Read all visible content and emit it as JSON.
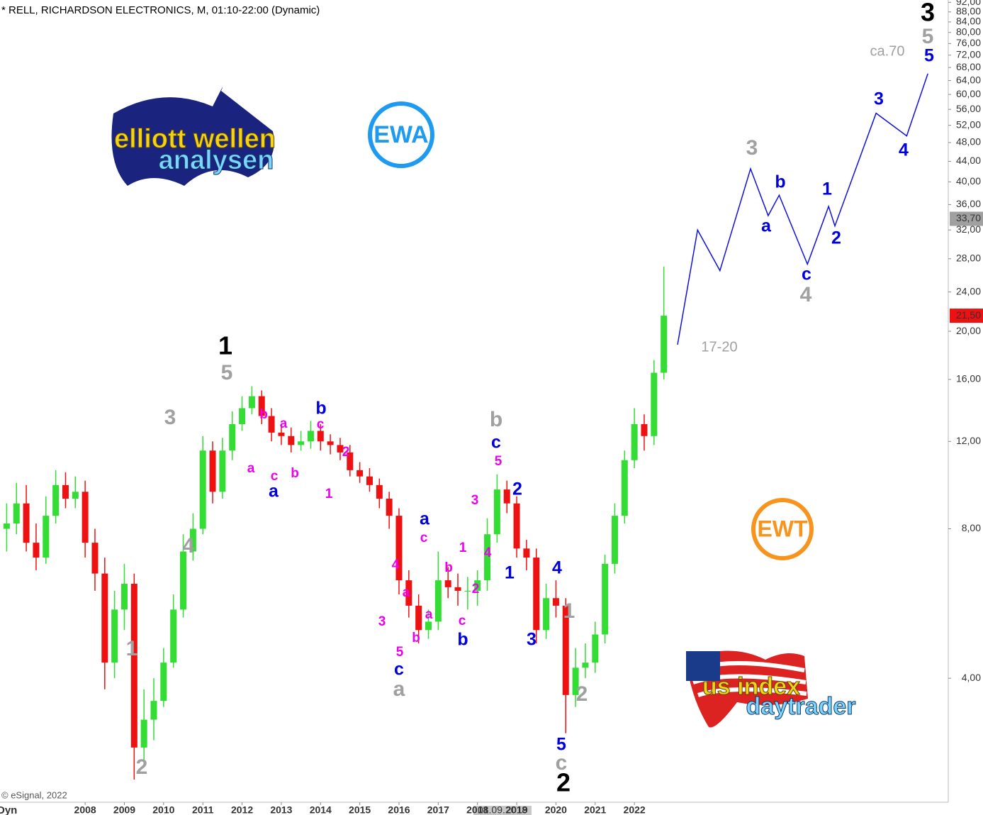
{
  "chart_data": {
    "type": "candlestick",
    "title": "* RELL, RICHARDSON ELECTRONICS, M, 01:10-22:00 (Dynamic)",
    "source": "© eSignal, 2022",
    "cursor_date": "01.09.2018",
    "footer_label": "Dyn",
    "up_color": "#33dd33",
    "down_color": "#ee1111",
    "x": [
      2006.0,
      2006.25,
      2006.5,
      2006.75,
      2007.0,
      2007.25,
      2007.5,
      2007.75,
      2008.0,
      2008.25,
      2008.5,
      2008.75,
      2009.0,
      2009.25,
      2009.5,
      2009.75,
      2010.0,
      2010.25,
      2010.5,
      2010.75,
      2011.0,
      2011.25,
      2011.5,
      2011.75,
      2012.0,
      2012.25,
      2012.5,
      2012.75,
      2013.0,
      2013.25,
      2013.5,
      2013.75,
      2014.0,
      2014.25,
      2014.5,
      2014.75,
      2015.0,
      2015.25,
      2015.5,
      2015.75,
      2016.0,
      2016.25,
      2016.5,
      2016.75,
      2017.0,
      2017.25,
      2017.5,
      2017.75,
      2018.0,
      2018.25,
      2018.5,
      2018.75,
      2019.0,
      2019.25,
      2019.5,
      2019.75,
      2020.0,
      2020.25,
      2020.5,
      2020.75,
      2021.0,
      2021.25,
      2021.5,
      2021.75,
      2022.0,
      2022.25,
      2022.5,
      2022.75
    ],
    "open": [
      8.0,
      8.2,
      9.0,
      7.5,
      7.0,
      8.5,
      9.8,
      9.2,
      9.5,
      7.5,
      6.5,
      4.3,
      5.5,
      6.2,
      2.9,
      3.3,
      3.6,
      4.3,
      5.5,
      7.2,
      8.0,
      11.5,
      9.5,
      11.5,
      13.0,
      14.0,
      14.8,
      13.5,
      12.5,
      12.3,
      11.8,
      12.0,
      12.6,
      12.0,
      11.8,
      11.4,
      10.5,
      10.2,
      9.8,
      9.2,
      8.5,
      6.3,
      5.6,
      5.0,
      5.2,
      6.3,
      6.1,
      6.0,
      6.0,
      6.3,
      7.8,
      9.6,
      9.0,
      7.3,
      7.0,
      5.0,
      5.8,
      5.6,
      3.7,
      4.2,
      4.3,
      4.9,
      6.8,
      8.5,
      11.0,
      13.0,
      12.3,
      16.5
    ],
    "high": [
      9.0,
      9.9,
      9.8,
      8.2,
      9.3,
      10.5,
      10.4,
      10.2,
      10.0,
      8.0,
      7.0,
      6.0,
      6.8,
      6.5,
      3.8,
      4.0,
      4.6,
      5.9,
      7.8,
      8.6,
      12.3,
      12.0,
      12.2,
      13.8,
      14.8,
      15.5,
      15.2,
      14.0,
      13.0,
      12.8,
      12.6,
      13.2,
      13.0,
      12.4,
      12.2,
      11.8,
      10.9,
      10.6,
      10.1,
      9.5,
      8.8,
      6.6,
      5.9,
      5.5,
      7.2,
      6.7,
      6.5,
      6.4,
      6.6,
      8.4,
      10.3,
      10.0,
      9.3,
      7.6,
      7.3,
      6.2,
      6.3,
      5.8,
      4.6,
      4.7,
      5.2,
      7.1,
      9.0,
      11.5,
      14.0,
      13.6,
      17.5,
      27.0
    ],
    "low": [
      7.2,
      7.8,
      7.2,
      6.6,
      6.8,
      8.2,
      8.8,
      8.8,
      7.0,
      6.0,
      3.8,
      4.0,
      5.0,
      2.5,
      2.7,
      3.0,
      3.5,
      4.2,
      5.3,
      6.9,
      7.8,
      9.0,
      9.2,
      11.0,
      12.6,
      13.6,
      13.0,
      12.0,
      11.8,
      11.4,
      11.5,
      11.6,
      11.5,
      11.3,
      11.0,
      10.2,
      9.9,
      9.5,
      8.8,
      8.0,
      5.9,
      5.3,
      4.7,
      4.8,
      5.0,
      5.8,
      5.6,
      5.5,
      5.6,
      6.0,
      7.5,
      8.6,
      7.0,
      6.6,
      4.7,
      4.8,
      5.3,
      3.1,
      3.5,
      4.0,
      4.1,
      4.7,
      6.5,
      8.2,
      10.6,
      11.5,
      11.8,
      16.0
    ],
    "close": [
      8.2,
      9.0,
      7.5,
      7.0,
      8.5,
      9.8,
      9.2,
      9.5,
      7.5,
      6.5,
      4.3,
      5.5,
      6.2,
      2.9,
      3.3,
      3.6,
      4.3,
      5.5,
      7.2,
      8.0,
      11.5,
      9.5,
      11.5,
      13.0,
      14.0,
      14.8,
      13.5,
      12.5,
      12.3,
      11.8,
      12.0,
      12.6,
      12.0,
      11.8,
      11.4,
      10.5,
      10.2,
      9.8,
      9.2,
      8.5,
      6.3,
      5.6,
      5.0,
      5.2,
      6.3,
      6.1,
      6.0,
      6.0,
      6.3,
      7.8,
      9.6,
      9.0,
      7.3,
      7.0,
      5.0,
      5.8,
      5.6,
      3.7,
      4.2,
      4.3,
      4.9,
      6.8,
      8.5,
      11.0,
      13.0,
      12.3,
      16.5,
      21.5
    ],
    "xlim": [
      2005.83,
      2030.0
    ],
    "xticks": [
      2008,
      2009,
      2010,
      2011,
      2012,
      2013,
      2014,
      2015,
      2016,
      2017,
      2018,
      2019,
      2020,
      2021,
      2022
    ],
    "ylim": [
      2.25,
      93
    ],
    "log_scale": true,
    "yticks": [
      {
        "value": 4,
        "label": "4,00"
      },
      {
        "value": 8,
        "label": "8,00"
      },
      {
        "value": 12,
        "label": "12,00"
      },
      {
        "value": 16,
        "label": "16,00"
      },
      {
        "value": 20,
        "label": "20,00"
      },
      {
        "value": 24,
        "label": "24,00"
      },
      {
        "value": 28,
        "label": "28,00"
      },
      {
        "value": 32,
        "label": "32,00"
      },
      {
        "value": 36,
        "label": "36,00"
      },
      {
        "value": 40,
        "label": "40,00"
      },
      {
        "value": 44,
        "label": "44,00"
      },
      {
        "value": 48,
        "label": "48,00"
      },
      {
        "value": 52,
        "label": "52,00"
      },
      {
        "value": 56,
        "label": "56,00"
      },
      {
        "value": 60,
        "label": "60,00"
      },
      {
        "value": 64,
        "label": "64,00"
      },
      {
        "value": 68,
        "label": "68,00"
      },
      {
        "value": 72,
        "label": "72,00"
      },
      {
        "value": 76,
        "label": "76,00"
      },
      {
        "value": 80,
        "label": "80,00"
      },
      {
        "value": 84,
        "label": "84,00"
      },
      {
        "value": 88,
        "label": "88,00"
      },
      {
        "value": 92,
        "label": "92,00"
      }
    ],
    "price_tags": [
      {
        "value": 33.7,
        "label": "33,70",
        "color": "#a0a0a0"
      },
      {
        "value": 21.5,
        "label": "21,50",
        "color": "#ee1111"
      }
    ],
    "projection": {
      "color": "#1010dd",
      "x": [
        2023.1,
        2023.61,
        2024.18,
        2024.96,
        2025.41,
        2025.69,
        2026.41,
        2026.95,
        2027.11,
        2028.16,
        2028.94,
        2029.48
      ],
      "values": [
        18.8,
        32.0,
        26.5,
        42.5,
        34.2,
        37.6,
        27.3,
        35.7,
        32.6,
        55.0,
        49.5,
        66.1
      ]
    },
    "wave_labels": [
      {
        "text": "1",
        "color": "#000000"
      },
      {
        "text": "2",
        "color": "#000000"
      },
      {
        "text": "3",
        "color": "#000000"
      },
      {
        "text": "5",
        "color": "#a0a0a0"
      },
      {
        "text": "3",
        "color": "#a0a0a0"
      },
      {
        "text": "4",
        "color": "#a0a0a0"
      },
      {
        "text": "1",
        "color": "#a0a0a0"
      },
      {
        "text": "2",
        "color": "#a0a0a0"
      },
      {
        "text": "b",
        "color": "#a0a0a0"
      },
      {
        "text": "a",
        "color": "#a0a0a0"
      },
      {
        "text": "1",
        "color": "#a0a0a0"
      },
      {
        "text": "2",
        "color": "#a0a0a0"
      },
      {
        "text": "c",
        "color": "#a0a0a0"
      },
      {
        "text": "3",
        "color": "#a0a0a0"
      },
      {
        "text": "4",
        "color": "#a0a0a0"
      },
      {
        "text": "5",
        "color": "#a0a0a0"
      },
      {
        "text": "b",
        "color": "#0000dd"
      },
      {
        "text": "a",
        "color": "#0000dd"
      },
      {
        "text": "a",
        "color": "#0000dd"
      },
      {
        "text": "c",
        "color": "#0000dd"
      },
      {
        "text": "b",
        "color": "#0000dd"
      },
      {
        "text": "c",
        "color": "#0000dd"
      },
      {
        "text": "2",
        "color": "#0000dd"
      },
      {
        "text": "1",
        "color": "#0000dd"
      },
      {
        "text": "3",
        "color": "#0000dd"
      },
      {
        "text": "4",
        "color": "#0000dd"
      },
      {
        "text": "5",
        "color": "#0000dd"
      },
      {
        "text": "a",
        "color": "#0000dd"
      },
      {
        "text": "b",
        "color": "#0000dd"
      },
      {
        "text": "c",
        "color": "#0000dd"
      },
      {
        "text": "1",
        "color": "#0000dd"
      },
      {
        "text": "2",
        "color": "#0000dd"
      },
      {
        "text": "3",
        "color": "#0000dd"
      },
      {
        "text": "4",
        "color": "#0000dd"
      },
      {
        "text": "5",
        "color": "#0000dd"
      },
      {
        "text": "b",
        "color": "#ee00ee"
      },
      {
        "text": "a",
        "color": "#ee00ee"
      },
      {
        "text": "c",
        "color": "#ee00ee"
      },
      {
        "text": "a",
        "color": "#ee00ee"
      },
      {
        "text": "c",
        "color": "#ee00ee"
      },
      {
        "text": "b",
        "color": "#ee00ee"
      },
      {
        "text": "2",
        "color": "#ee00ee"
      },
      {
        "text": "1",
        "color": "#ee00ee"
      },
      {
        "text": "3",
        "color": "#ee00ee"
      },
      {
        "text": "5",
        "color": "#ee00ee"
      },
      {
        "text": "4",
        "color": "#ee00ee"
      },
      {
        "text": "1",
        "color": "#ee00ee"
      },
      {
        "text": "b",
        "color": "#ee00ee"
      },
      {
        "text": "2",
        "color": "#ee00ee"
      },
      {
        "text": "4",
        "color": "#ee00ee"
      },
      {
        "text": "a",
        "color": "#ee00ee"
      },
      {
        "text": "3",
        "color": "#ee00ee"
      },
      {
        "text": "5",
        "color": "#ee00ee"
      },
      {
        "text": "b",
        "color": "#ee00ee"
      },
      {
        "text": "a",
        "color": "#ee00ee"
      },
      {
        "text": "c",
        "color": "#ee00ee"
      },
      {
        "text": "c",
        "color": "#ee00ee"
      },
      {
        "text": "17-20",
        "color": "#a0a0a0"
      },
      {
        "text": "ca.70",
        "color": "#a0a0a0"
      }
    ]
  },
  "logos": {
    "ewa": "EWA",
    "ewt": "EWT",
    "elliott_top": "elliott wellen",
    "elliott_bottom": "analysen",
    "us_top": "us index",
    "us_bottom": "daytrader"
  }
}
